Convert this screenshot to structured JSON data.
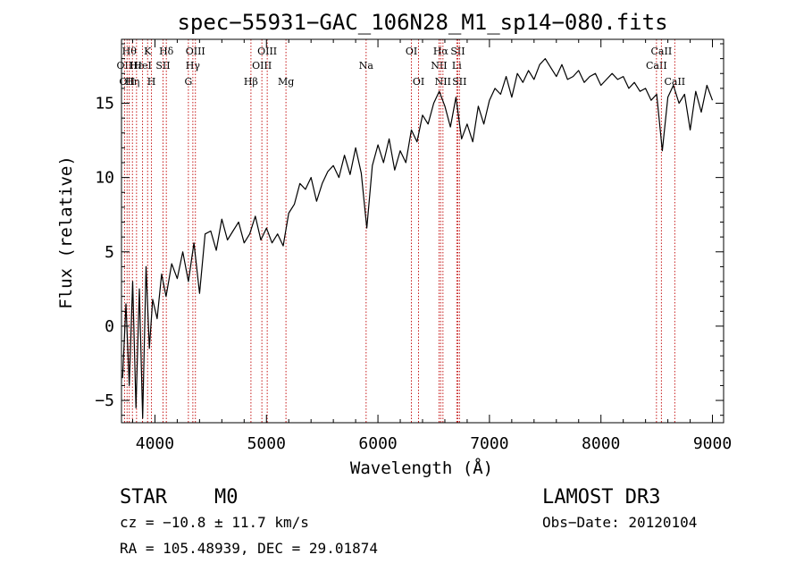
{
  "chart_data": {
    "type": "line",
    "title": "spec−55931−GAC_106N28_M1_sp14−080.fits",
    "xlabel": "Wavelength (Å)",
    "ylabel": "Flux (relative)",
    "xlim": [
      3700,
      9100
    ],
    "ylim": [
      -6.5,
      19.3
    ],
    "x_ticks": [
      4000,
      5000,
      6000,
      7000,
      8000,
      9000
    ],
    "x_tick_labels": [
      "4000",
      "5000",
      "6000",
      "7000",
      "8000",
      "9000"
    ],
    "y_ticks": [
      -5,
      0,
      5,
      10,
      15
    ],
    "y_tick_labels": [
      "−5",
      "0",
      "5",
      "10",
      "15"
    ],
    "series": [
      {
        "name": "spectrum",
        "x": [
          3710,
          3740,
          3770,
          3800,
          3830,
          3860,
          3890,
          3920,
          3950,
          3980,
          4020,
          4060,
          4100,
          4150,
          4200,
          4250,
          4300,
          4350,
          4400,
          4450,
          4500,
          4550,
          4600,
          4650,
          4700,
          4750,
          4800,
          4850,
          4900,
          4950,
          5000,
          5050,
          5100,
          5150,
          5200,
          5250,
          5300,
          5350,
          5400,
          5450,
          5500,
          5550,
          5600,
          5650,
          5700,
          5750,
          5800,
          5850,
          5900,
          5950,
          6000,
          6050,
          6100,
          6150,
          6200,
          6250,
          6300,
          6350,
          6400,
          6450,
          6500,
          6550,
          6600,
          6650,
          6700,
          6750,
          6800,
          6850,
          6900,
          6950,
          7000,
          7050,
          7100,
          7150,
          7200,
          7250,
          7300,
          7350,
          7400,
          7450,
          7500,
          7550,
          7600,
          7650,
          7700,
          7750,
          7800,
          7850,
          7900,
          7950,
          8000,
          8050,
          8100,
          8150,
          8200,
          8250,
          8300,
          8350,
          8400,
          8450,
          8500,
          8550,
          8600,
          8650,
          8700,
          8750,
          8800,
          8850,
          8900,
          8950,
          9000
        ],
        "y": [
          -3.5,
          1.5,
          -4.0,
          3.0,
          -5.5,
          2.5,
          -6.2,
          4.0,
          -1.5,
          1.8,
          0.5,
          3.5,
          2.0,
          4.2,
          3.2,
          5.0,
          3.0,
          5.6,
          2.2,
          6.2,
          6.4,
          5.1,
          7.2,
          5.8,
          6.4,
          7.0,
          5.6,
          6.2,
          7.4,
          5.8,
          6.6,
          5.6,
          6.2,
          5.4,
          7.6,
          8.2,
          9.6,
          9.2,
          10.0,
          8.4,
          9.6,
          10.4,
          10.8,
          10.0,
          11.5,
          10.2,
          12.0,
          10.3,
          6.6,
          10.8,
          12.2,
          11.0,
          12.6,
          10.5,
          11.8,
          11.0,
          13.2,
          12.4,
          14.2,
          13.6,
          15.0,
          15.8,
          14.8,
          13.4,
          15.4,
          12.6,
          13.6,
          12.4,
          14.8,
          13.6,
          15.2,
          16.0,
          15.6,
          16.8,
          15.4,
          17.0,
          16.4,
          17.2,
          16.6,
          17.6,
          18.0,
          17.4,
          16.8,
          17.6,
          16.6,
          16.8,
          17.2,
          16.4,
          16.8,
          17.0,
          16.2,
          16.6,
          17.0,
          16.6,
          16.8,
          16.0,
          16.4,
          15.8,
          16.0,
          15.2,
          15.6,
          11.8,
          15.4,
          16.2,
          15.0,
          15.6,
          13.2,
          15.8,
          14.4,
          16.2,
          15.2
        ]
      }
    ],
    "line_marks": [
      {
        "wavelength": 3727,
        "label": "OII",
        "row": 2
      },
      {
        "wavelength": 3750,
        "label": "OII",
        "row": 3
      },
      {
        "wavelength": 3770,
        "label": "Hθ",
        "row": 1
      },
      {
        "wavelength": 3798,
        "label": "Hη",
        "row": 3
      },
      {
        "wavelength": 3835,
        "label": "Hε",
        "row": 2
      },
      {
        "wavelength": 3889,
        "label": "HeI",
        "row": 2
      },
      {
        "wavelength": 3934,
        "label": "K",
        "row": 1
      },
      {
        "wavelength": 3969,
        "label": "H",
        "row": 3
      },
      {
        "wavelength": 4072,
        "label": "SII",
        "row": 2
      },
      {
        "wavelength": 4102,
        "label": "Hδ",
        "row": 1
      },
      {
        "wavelength": 4300,
        "label": "G",
        "row": 3
      },
      {
        "wavelength": 4340,
        "label": "Hγ",
        "row": 2
      },
      {
        "wavelength": 4363,
        "label": "OIII",
        "row": 1
      },
      {
        "wavelength": 4861,
        "label": "Hβ",
        "row": 3
      },
      {
        "wavelength": 4959,
        "label": "OIII",
        "row": 2
      },
      {
        "wavelength": 5007,
        "label": "OIII",
        "row": 1
      },
      {
        "wavelength": 5175,
        "label": "Mg",
        "row": 3
      },
      {
        "wavelength": 5894,
        "label": "Na",
        "row": 2
      },
      {
        "wavelength": 6300,
        "label": "OI",
        "row": 1
      },
      {
        "wavelength": 6364,
        "label": "OI",
        "row": 3
      },
      {
        "wavelength": 6548,
        "label": "NII",
        "row": 2
      },
      {
        "wavelength": 6563,
        "label": "Hα",
        "row": 1
      },
      {
        "wavelength": 6583,
        "label": "NII",
        "row": 3
      },
      {
        "wavelength": 6707,
        "label": "Li",
        "row": 2
      },
      {
        "wavelength": 6716,
        "label": "SII",
        "row": 1
      },
      {
        "wavelength": 6731,
        "label": "SII",
        "row": 3
      },
      {
        "wavelength": 8498,
        "label": "CaII",
        "row": 2
      },
      {
        "wavelength": 8542,
        "label": "CaII",
        "row": 1
      },
      {
        "wavelength": 8662,
        "label": "CaII",
        "row": 3
      }
    ]
  },
  "info": {
    "object_class": "STAR",
    "subclass": "M0",
    "survey": "LAMOST DR3",
    "redshift_line": "cz = −10.8 ± 11.7 km/s",
    "obs_date_line": "Obs−Date: 20120104",
    "coords_line": "RA = 105.48939, DEC =  29.01874"
  }
}
